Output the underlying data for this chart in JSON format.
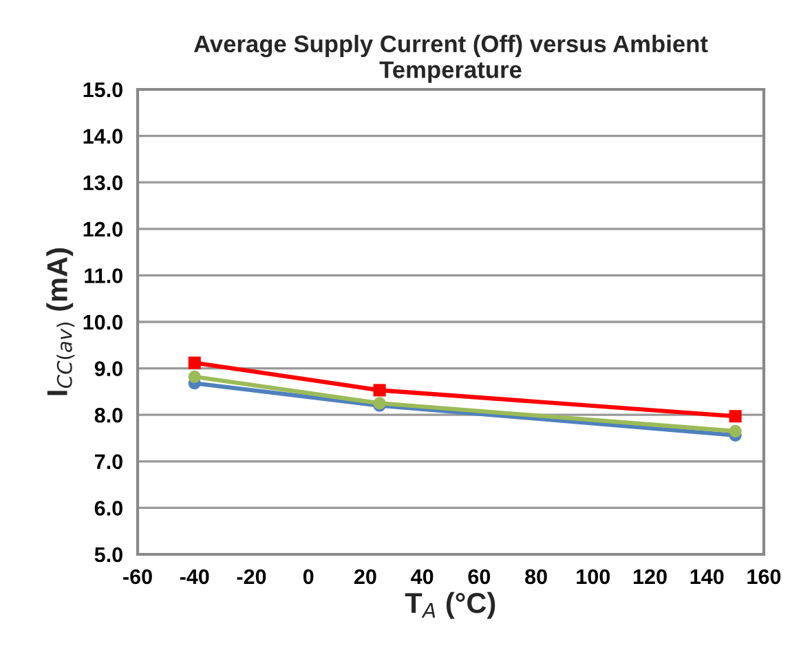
{
  "chart_data": {
    "type": "line",
    "title": "Average Supply Current (Off) versus Ambient\nTemperature",
    "xlabel": "T$_{A}$ (°C)",
    "ylabel": "I$_{CC(av)}$ (mA)",
    "x": [
      -40,
      25,
      150
    ],
    "series": [
      {
        "color": "#4f81bd",
        "marker": "circle",
        "values": [
          8.68,
          8.2,
          7.56
        ]
      },
      {
        "color": "#9bbb59",
        "marker": "circle",
        "values": [
          8.82,
          8.25,
          7.65
        ]
      },
      {
        "color": "#ff0000",
        "marker": "square",
        "values": [
          9.12,
          8.53,
          7.97
        ]
      }
    ],
    "xlim": [
      -60,
      160
    ],
    "xticks": [
      -60,
      -40,
      -20,
      0,
      20,
      40,
      60,
      80,
      100,
      120,
      140,
      160
    ],
    "ylim": [
      5,
      15
    ],
    "yticks": [
      {
        "value": 5,
        "label": "5.0"
      },
      {
        "value": 6,
        "label": "6.0"
      },
      {
        "value": 7,
        "label": "7.0"
      },
      {
        "value": 8,
        "label": "8.0"
      },
      {
        "value": 9,
        "label": "9.0"
      },
      {
        "value": 10,
        "label": "10.0"
      },
      {
        "value": 11,
        "label": "11.0"
      },
      {
        "value": 12,
        "label": "12.0"
      },
      {
        "value": 13,
        "label": "13.0"
      },
      {
        "value": 14,
        "label": "14.0"
      },
      {
        "value": 15,
        "label": "15.0"
      }
    ],
    "grid": "y",
    "line_style": "solid"
  }
}
